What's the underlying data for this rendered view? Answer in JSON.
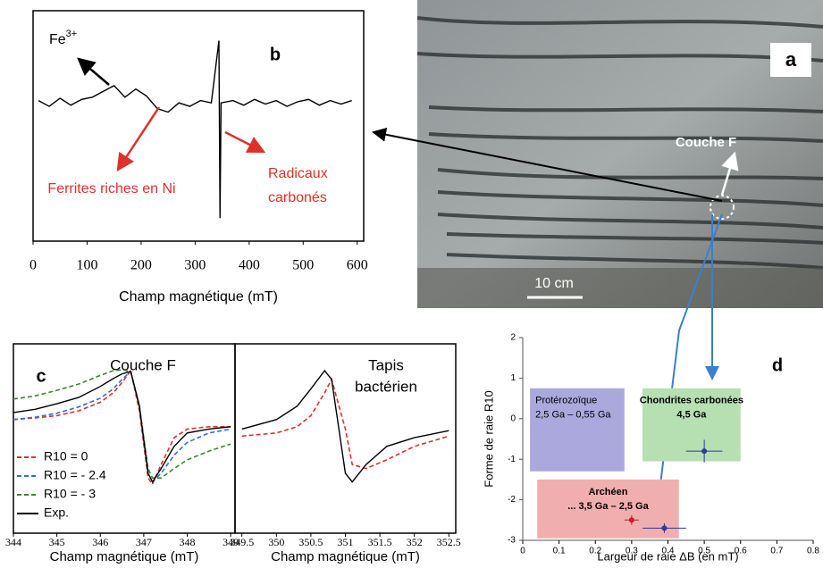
{
  "photo": {
    "letter": "a",
    "layer_label": "Couche F",
    "scale_label": "10 cm"
  },
  "chart_data": [
    {
      "type": "line",
      "letter": "b",
      "xlabel": "Champ magnétique (mT)",
      "xlim": [
        0,
        612
      ],
      "xticks": [
        0,
        100,
        200,
        300,
        400,
        500,
        600
      ],
      "ylim": [
        -1.2,
        0.8
      ],
      "x": [
        10,
        30,
        50,
        70,
        90,
        110,
        130,
        150,
        170,
        190,
        210,
        230,
        250,
        270,
        290,
        310,
        330,
        344,
        346,
        348,
        370,
        390,
        410,
        430,
        450,
        470,
        490,
        510,
        530,
        550,
        570,
        590
      ],
      "series": [
        {
          "color": "#000000",
          "values": [
            0.02,
            -0.03,
            0.04,
            -0.02,
            0.03,
            0.05,
            0.1,
            0.15,
            0.05,
            0.12,
            0.06,
            -0.05,
            -0.08,
            0.0,
            -0.03,
            0.02,
            0.0,
            0.54,
            -1.0,
            0.0,
            0.02,
            -0.02,
            0.03,
            -0.01,
            0.02,
            -0.03,
            0.01,
            0.03,
            -0.02,
            0.02,
            -0.01,
            0.02
          ]
        }
      ],
      "annotations": [
        {
          "text": "Fe",
          "sup": "3+"
        },
        {
          "lines": [
            "Ferrites riches en Ni"
          ]
        },
        {
          "lines": [
            "Radicaux",
            "carbonés"
          ]
        }
      ]
    },
    {
      "type": "line",
      "letter": "c",
      "title_lines": [
        "Couche F"
      ],
      "xlabel": "Champ magnétique (mT)",
      "xlim": [
        344,
        349.1
      ],
      "xticks": [
        344,
        345,
        346,
        347,
        348,
        349
      ],
      "ylim": [
        -1.2,
        1.2
      ],
      "x": [
        344,
        344.5,
        345,
        345.5,
        346,
        346.3,
        346.5,
        346.7,
        346.9,
        347.1,
        347.2,
        347.4,
        347.7,
        348,
        348.5,
        349
      ],
      "series": [
        {
          "name": "R10 = 0",
          "color": "#e0302a",
          "dash": true,
          "values": [
            0.24,
            0.26,
            0.29,
            0.35,
            0.46,
            0.58,
            0.71,
            0.86,
            0.35,
            -0.5,
            -0.58,
            -0.33,
            0.01,
            0.12,
            0.15,
            0.15
          ]
        },
        {
          "name": "R10 = - 2.4",
          "color": "#2f6fd0",
          "dash": true,
          "values": [
            0.24,
            0.27,
            0.32,
            0.4,
            0.51,
            0.63,
            0.75,
            0.85,
            0.41,
            -0.44,
            -0.55,
            -0.44,
            -0.21,
            -0.05,
            0.07,
            0.12
          ]
        },
        {
          "name": "R10 = - 3",
          "color": "#3a8a2a",
          "dash": true,
          "values": [
            0.5,
            0.54,
            0.61,
            0.69,
            0.8,
            0.86,
            0.87,
            0.85,
            0.41,
            -0.38,
            -0.5,
            -0.5,
            -0.38,
            -0.27,
            -0.16,
            -0.07
          ]
        },
        {
          "name": "Exp.",
          "color": "#000000",
          "dash": false,
          "values": [
            0.33,
            0.37,
            0.44,
            0.52,
            0.66,
            0.76,
            0.82,
            0.85,
            0.41,
            -0.44,
            -0.55,
            -0.38,
            -0.1,
            0.07,
            0.12,
            0.15
          ]
        }
      ]
    },
    {
      "type": "line",
      "title_lines": [
        "Tapis",
        "bactérien"
      ],
      "xlabel": "Champ magnétique (mT)",
      "xlim": [
        349.4,
        352.6
      ],
      "xticks": [
        349.5,
        350,
        350.5,
        351,
        351.5,
        352,
        352.5
      ],
      "ylim": [
        -1.2,
        1.2
      ],
      "x": [
        349.5,
        350,
        350.3,
        350.5,
        350.7,
        350.8,
        351,
        351.1,
        351.3,
        351.6,
        352,
        352.5
      ],
      "series": [
        {
          "color": "#e0302a",
          "dash": true,
          "values": [
            0.03,
            0.07,
            0.15,
            0.29,
            0.58,
            0.75,
            0.12,
            -0.33,
            -0.38,
            -0.27,
            -0.1,
            0.03
          ]
        },
        {
          "color": "#000000",
          "dash": false,
          "values": [
            0.12,
            0.24,
            0.41,
            0.63,
            0.86,
            0.75,
            -0.44,
            -0.55,
            -0.33,
            -0.1,
            0.01,
            0.1
          ]
        }
      ]
    },
    {
      "type": "scatter",
      "letter": "d",
      "xlabel": "Largeur de raie ΔB (en mT)",
      "ylabel": "Forme de raie R10",
      "xlim": [
        0,
        0.8
      ],
      "ylim": [
        -3,
        2
      ],
      "xticks": [
        0,
        0.1,
        0.2,
        0.3,
        0.4,
        0.5,
        0.6,
        0.7,
        0.8
      ],
      "yticks": [
        -3,
        -2,
        -1,
        0,
        1,
        2
      ],
      "regions": [
        {
          "lines": [
            "Protérozoïque",
            "2,5 Ga – 0,55 Ga"
          ],
          "color": "#aaa8dd",
          "x": [
            0.02,
            0.28
          ],
          "y": [
            -1.3,
            0.75
          ]
        },
        {
          "lines": [
            "Chondrites carbonées",
            "4,5 Ga"
          ],
          "color": "#b6dfb2",
          "x": [
            0.33,
            0.6
          ],
          "y": [
            -1.05,
            0.75
          ]
        },
        {
          "lines": [
            "Archéen",
            "... 3,5 Ga – 2,5 Ga"
          ],
          "color": "#f1aeae",
          "x": [
            0.04,
            0.43
          ],
          "y": [
            -2.95,
            -1.5
          ]
        }
      ],
      "series": [
        {
          "color": "#c0202a",
          "x": [
            0.3
          ],
          "values": [
            -2.5
          ],
          "xerr": [
            0.02
          ],
          "yerr": [
            0.12
          ]
        },
        {
          "color": "#2b3a9a",
          "x": [
            0.39,
            0.5
          ],
          "values": [
            -2.7,
            -0.8
          ],
          "xerr": [
            0.06,
            0.05
          ],
          "yerr": [
            0.12,
            0.28
          ]
        }
      ]
    }
  ]
}
